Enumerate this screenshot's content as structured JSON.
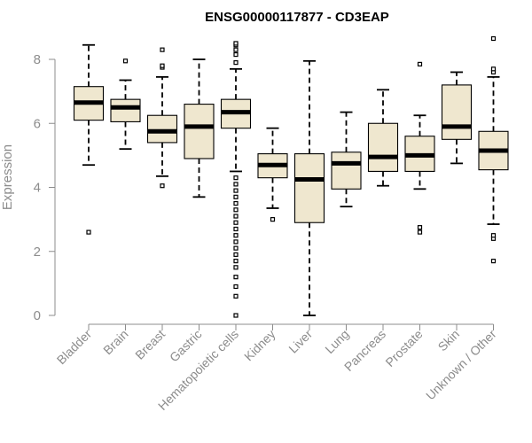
{
  "chart_data": {
    "type": "boxplot",
    "title": "ENSG00000117877 - CD3EAP",
    "xlabel": "",
    "ylabel": "Expression",
    "ylim": [
      0,
      8.7
    ],
    "yticks": [
      0,
      2,
      4,
      6,
      8
    ],
    "colors": {
      "box_fill": "#efe7cf",
      "box_stroke": "#000000",
      "axis": "#8c8c8c"
    },
    "categories": [
      "Bladder",
      "Brain",
      "Breast",
      "Gastric",
      "Hematopoietic cells",
      "Kidney",
      "Liver",
      "Lung",
      "Pancreas",
      "Prostate",
      "Skin",
      "Unknown / Other"
    ],
    "boxes": [
      {
        "category": "Bladder",
        "whisker_low": 4.7,
        "q1": 6.1,
        "median": 6.65,
        "q3": 7.15,
        "whisker_high": 8.45,
        "outliers": [
          2.6
        ]
      },
      {
        "category": "Brain",
        "whisker_low": 5.2,
        "q1": 6.05,
        "median": 6.5,
        "q3": 6.75,
        "whisker_high": 7.35,
        "outliers": [
          7.95
        ]
      },
      {
        "category": "Breast",
        "whisker_low": 4.35,
        "q1": 5.4,
        "median": 5.75,
        "q3": 6.25,
        "whisker_high": 7.45,
        "outliers": [
          4.05,
          7.75,
          7.8,
          8.3
        ]
      },
      {
        "category": "Gastric",
        "whisker_low": 3.7,
        "q1": 4.9,
        "median": 5.9,
        "q3": 6.6,
        "whisker_high": 8.0,
        "outliers": []
      },
      {
        "category": "Hematopoietic cells",
        "whisker_low": 4.5,
        "q1": 5.85,
        "median": 6.35,
        "q3": 6.75,
        "whisker_high": 7.7,
        "outliers": [
          0.0,
          0.6,
          0.9,
          1.2,
          1.5,
          1.7,
          1.9,
          2.1,
          2.3,
          2.5,
          2.7,
          2.9,
          3.1,
          3.3,
          3.5,
          3.7,
          3.9,
          4.1,
          4.3,
          7.9,
          8.15,
          8.3,
          8.45,
          8.5
        ]
      },
      {
        "category": "Kidney",
        "whisker_low": 3.35,
        "q1": 4.3,
        "median": 4.7,
        "q3": 5.05,
        "whisker_high": 5.85,
        "outliers": [
          3.0
        ]
      },
      {
        "category": "Liver",
        "whisker_low": 0.0,
        "q1": 2.9,
        "median": 4.25,
        "q3": 5.05,
        "whisker_high": 7.95,
        "outliers": []
      },
      {
        "category": "Lung",
        "whisker_low": 3.4,
        "q1": 3.95,
        "median": 4.75,
        "q3": 5.1,
        "whisker_high": 6.35,
        "outliers": []
      },
      {
        "category": "Pancreas",
        "whisker_low": 4.05,
        "q1": 4.5,
        "median": 4.95,
        "q3": 6.0,
        "whisker_high": 7.05,
        "outliers": []
      },
      {
        "category": "Prostate",
        "whisker_low": 3.95,
        "q1": 4.5,
        "median": 5.0,
        "q3": 5.6,
        "whisker_high": 6.25,
        "outliers": [
          2.6,
          2.75,
          7.85
        ]
      },
      {
        "category": "Skin",
        "whisker_low": 4.75,
        "q1": 5.5,
        "median": 5.9,
        "q3": 7.2,
        "whisker_high": 7.6,
        "outliers": []
      },
      {
        "category": "Unknown / Other",
        "whisker_low": 2.85,
        "q1": 4.55,
        "median": 5.15,
        "q3": 5.75,
        "whisker_high": 7.45,
        "outliers": [
          1.7,
          2.4,
          2.5,
          7.6,
          7.7,
          8.65
        ]
      }
    ]
  }
}
